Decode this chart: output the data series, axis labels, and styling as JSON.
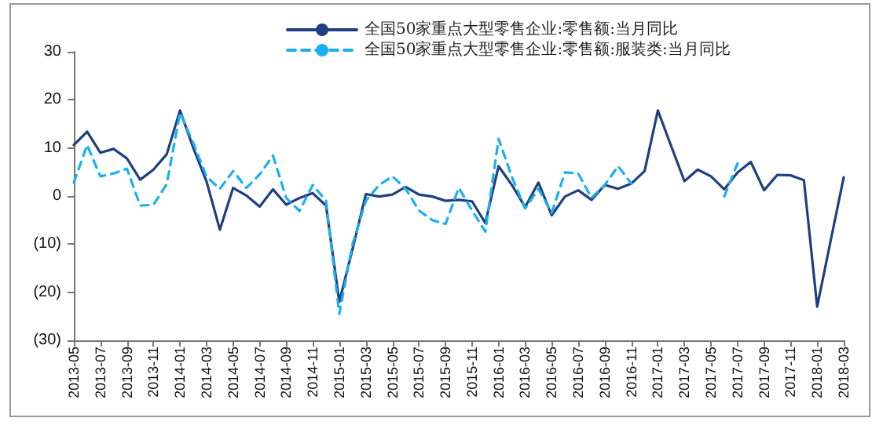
{
  "chart_data": {
    "type": "line",
    "categories": [
      "2013-05",
      null,
      "2013-07",
      null,
      "2013-09",
      null,
      "2013-11",
      null,
      "2014-01",
      null,
      "2014-03",
      null,
      "2014-05",
      null,
      "2014-07",
      null,
      "2014-09",
      null,
      "2014-11",
      null,
      "2015-01",
      null,
      "2015-03",
      null,
      "2015-05",
      null,
      "2015-07",
      null,
      "2015-09",
      null,
      "2015-11",
      null,
      "2016-01",
      null,
      "2016-03",
      null,
      "2016-05",
      null,
      "2016-07",
      null,
      "2016-09",
      null,
      "2016-11",
      null,
      "2017-01",
      null,
      "2017-03",
      null,
      "2017-05",
      null,
      "2017-07",
      null,
      "2017-09",
      null,
      "2017-11",
      null,
      "2018-01",
      null,
      "2018-03"
    ],
    "series": [
      {
        "name": "全国50家重点大型零售企业:零售额:当月同比",
        "color": "#1f3f7f",
        "line_style": "solid",
        "values": [
          10.6,
          13.4,
          9.0,
          9.8,
          7.8,
          3.4,
          5.5,
          8.7,
          17.8,
          10,
          3,
          -7,
          1.7,
          0.1,
          -2.2,
          1.4,
          -1.8,
          -0.4,
          0.6,
          -2.0,
          -22,
          -11,
          0.4,
          -0.1,
          0.3,
          1.9,
          0.3,
          -0.1,
          -1.0,
          -0.8,
          -1.1,
          -5.6,
          6.2,
          2.3,
          -2.3,
          2.8,
          -4.0,
          -0.1,
          1.2,
          -0.8,
          2.3,
          1.5,
          2.6,
          5.2,
          17.8,
          10.4,
          3.1,
          5.5,
          4.1,
          1.4,
          4.9,
          7.1,
          1.2,
          4.4,
          4.3,
          3.3,
          -23,
          -9.5,
          3.9
        ]
      },
      {
        "name": "全国50家重点大型零售企业:零售额:服装类:当月同比",
        "color": "#1ab0f0",
        "line_style": "dashed",
        "values": [
          2.8,
          10.6,
          4.1,
          4.7,
          5.7,
          -2.0,
          -1.8,
          2.5,
          17.3,
          11,
          4,
          1.5,
          5.2,
          1.7,
          4.5,
          8.4,
          -0.4,
          -3.1,
          2.3,
          -1,
          -24.5,
          -10,
          -1,
          2.3,
          4.1,
          1.5,
          -3,
          -5,
          -5.8,
          1.7,
          -3,
          -7.4,
          11.9,
          4,
          -2.6,
          1.5,
          -3.5,
          4.9,
          4.7,
          -0.4,
          2.3,
          6.2,
          2.6,
          null,
          null,
          null,
          null,
          null,
          null,
          -0.1,
          6.8,
          null,
          null,
          null,
          null,
          null,
          null,
          null,
          null
        ]
      }
    ],
    "ylim": [
      -30,
      30
    ],
    "yticks": [
      {
        "value": -30,
        "label": "(30)"
      },
      {
        "value": -20,
        "label": "(20)"
      },
      {
        "value": -10,
        "label": "(10)"
      },
      0,
      10,
      20,
      30
    ],
    "grid": false,
    "legend": "top",
    "marker": "none"
  }
}
